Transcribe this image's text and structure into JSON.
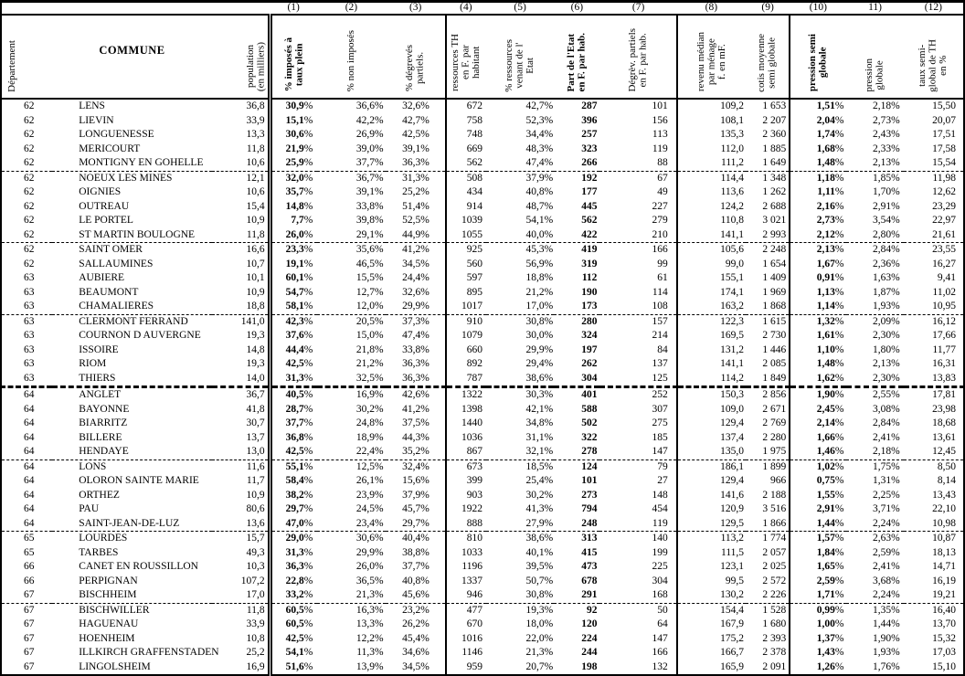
{
  "table": {
    "number_row": [
      "",
      "",
      "",
      "(1)",
      "(2)",
      "(3)",
      "(4)",
      "(5)",
      "(6)",
      "(7)",
      "(8)",
      "(9)",
      "(10)",
      "11)",
      "(12)"
    ],
    "headers": [
      {
        "key": "departement",
        "label": "Département"
      },
      {
        "key": "commune",
        "label": "COMMUNE"
      },
      {
        "key": "population",
        "label": "population\n(en milliers)"
      },
      {
        "key": "pct-imposes-taux-plein",
        "label": "% imposés à\ntaux plein"
      },
      {
        "key": "pct-non-imposes",
        "label": "% non imposés"
      },
      {
        "key": "pct-degreves-partiels",
        "label": "% dégrevés\npartiels."
      },
      {
        "key": "ressources-th",
        "label": "ressources TH\nen F. par\nhabitant"
      },
      {
        "key": "pct-ressources-etat",
        "label": "% ressources\nvenant de l'\nEtat"
      },
      {
        "key": "part-etat",
        "label": "Part de l'Etat\nen F. par hab."
      },
      {
        "key": "degrev-partiels",
        "label": "Dégrèv. partiels\nen F. par hab."
      },
      {
        "key": "revenu-median",
        "label": "revenu médian\npar ménage\nf. en mF."
      },
      {
        "key": "cotis-moyenne",
        "label": "cotis moyenne\nsemi globale"
      },
      {
        "key": "pression-semi-globale",
        "label": "pression semi\nglobale"
      },
      {
        "key": "pression-globale",
        "label": "pression\nglobale"
      },
      {
        "key": "taux-semi-global",
        "label": "taux semi-\nglobal de TH\nen %"
      }
    ],
    "rows": [
      [
        "62",
        "LENS",
        "36,8",
        "30,9%",
        "36,6%",
        "32,6%",
        "672",
        "42,7%",
        "287",
        "101",
        "109,2",
        "1 653",
        "1,51%",
        "2,18%",
        "15,50"
      ],
      [
        "62",
        "LIEVIN",
        "33,9",
        "15,1%",
        "42,2%",
        "42,7%",
        "758",
        "52,3%",
        "396",
        "156",
        "108,1",
        "2 207",
        "2,04%",
        "2,73%",
        "20,07"
      ],
      [
        "62",
        "LONGUENESSE",
        "13,3",
        "30,6%",
        "26,9%",
        "42,5%",
        "748",
        "34,4%",
        "257",
        "113",
        "135,3",
        "2 360",
        "1,74%",
        "2,43%",
        "17,51"
      ],
      [
        "62",
        "MERICOURT",
        "11,8",
        "21,9%",
        "39,0%",
        "39,1%",
        "669",
        "48,3%",
        "323",
        "119",
        "112,0",
        "1 885",
        "1,68%",
        "2,33%",
        "17,58"
      ],
      [
        "62",
        "MONTIGNY EN GOHELLE",
        "10,6",
        "25,9%",
        "37,7%",
        "36,3%",
        "562",
        "47,4%",
        "266",
        "88",
        "111,2",
        "1 649",
        "1,48%",
        "2,13%",
        "15,54"
      ],
      [
        "62",
        "NOEUX LES MINES",
        "12,1",
        "32,0%",
        "36,7%",
        "31,3%",
        "508",
        "37,9%",
        "192",
        "67",
        "114,4",
        "1 348",
        "1,18%",
        "1,85%",
        "11,98"
      ],
      [
        "62",
        "OIGNIES",
        "10,6",
        "35,7%",
        "39,1%",
        "25,2%",
        "434",
        "40,8%",
        "177",
        "49",
        "113,6",
        "1 262",
        "1,11%",
        "1,70%",
        "12,62"
      ],
      [
        "62",
        "OUTREAU",
        "15,4",
        "14,8%",
        "33,8%",
        "51,4%",
        "914",
        "48,7%",
        "445",
        "227",
        "124,2",
        "2 688",
        "2,16%",
        "2,91%",
        "23,29"
      ],
      [
        "62",
        "LE PORTEL",
        "10,9",
        "7,7%",
        "39,8%",
        "52,5%",
        "1039",
        "54,1%",
        "562",
        "279",
        "110,8",
        "3 021",
        "2,73%",
        "3,54%",
        "22,97"
      ],
      [
        "62",
        "ST MARTIN BOULOGNE",
        "11,8",
        "26,0%",
        "29,1%",
        "44,9%",
        "1055",
        "40,0%",
        "422",
        "210",
        "141,1",
        "2 993",
        "2,12%",
        "2,80%",
        "21,61"
      ],
      [
        "62",
        "SAINT OMER",
        "16,6",
        "23,3%",
        "35,6%",
        "41,2%",
        "925",
        "45,3%",
        "419",
        "166",
        "105,6",
        "2 248",
        "2,13%",
        "2,84%",
        "23,55"
      ],
      [
        "62",
        "SALLAUMINES",
        "10,7",
        "19,1%",
        "46,5%",
        "34,5%",
        "560",
        "56,9%",
        "319",
        "99",
        "99,0",
        "1 654",
        "1,67%",
        "2,36%",
        "16,27"
      ],
      [
        "63",
        "AUBIERE",
        "10,1",
        "60,1%",
        "15,5%",
        "24,4%",
        "597",
        "18,8%",
        "112",
        "61",
        "155,1",
        "1 409",
        "0,91%",
        "1,63%",
        "9,41"
      ],
      [
        "63",
        "BEAUMONT",
        "10,9",
        "54,7%",
        "12,7%",
        "32,6%",
        "895",
        "21,2%",
        "190",
        "114",
        "174,1",
        "1 969",
        "1,13%",
        "1,87%",
        "11,02"
      ],
      [
        "63",
        "CHAMALIERES",
        "18,8",
        "58,1%",
        "12,0%",
        "29,9%",
        "1017",
        "17,0%",
        "173",
        "108",
        "163,2",
        "1 868",
        "1,14%",
        "1,93%",
        "10,95"
      ],
      [
        "63",
        "CLERMONT FERRAND",
        "141,0",
        "42,3%",
        "20,5%",
        "37,3%",
        "910",
        "30,8%",
        "280",
        "157",
        "122,3",
        "1 615",
        "1,32%",
        "2,09%",
        "16,12"
      ],
      [
        "63",
        "COURNON D AUVERGNE",
        "19,3",
        "37,6%",
        "15,0%",
        "47,4%",
        "1079",
        "30,0%",
        "324",
        "214",
        "169,5",
        "2 730",
        "1,61%",
        "2,30%",
        "17,66"
      ],
      [
        "63",
        "ISSOIRE",
        "14,8",
        "44,4%",
        "21,8%",
        "33,8%",
        "660",
        "29,9%",
        "197",
        "84",
        "131,2",
        "1 446",
        "1,10%",
        "1,80%",
        "11,77"
      ],
      [
        "63",
        "RIOM",
        "19,3",
        "42,5%",
        "21,2%",
        "36,3%",
        "892",
        "29,4%",
        "262",
        "137",
        "141,1",
        "2 085",
        "1,48%",
        "2,13%",
        "16,31"
      ],
      [
        "63",
        "THIERS",
        "14,0",
        "31,3%",
        "32,5%",
        "36,3%",
        "787",
        "38,6%",
        "304",
        "125",
        "114,2",
        "1 849",
        "1,62%",
        "2,30%",
        "13,83"
      ],
      [
        "64",
        "ANGLET",
        "36,7",
        "40,5%",
        "16,9%",
        "42,6%",
        "1322",
        "30,3%",
        "401",
        "252",
        "150,3",
        "2 856",
        "1,90%",
        "2,55%",
        "17,81"
      ],
      [
        "64",
        "BAYONNE",
        "41,8",
        "28,7%",
        "30,2%",
        "41,2%",
        "1398",
        "42,1%",
        "588",
        "307",
        "109,0",
        "2 671",
        "2,45%",
        "3,08%",
        "23,98"
      ],
      [
        "64",
        "BIARRITZ",
        "30,7",
        "37,7%",
        "24,8%",
        "37,5%",
        "1440",
        "34,8%",
        "502",
        "275",
        "129,4",
        "2 769",
        "2,14%",
        "2,84%",
        "18,68"
      ],
      [
        "64",
        "BILLERE",
        "13,7",
        "36,8%",
        "18,9%",
        "44,3%",
        "1036",
        "31,1%",
        "322",
        "185",
        "137,4",
        "2 280",
        "1,66%",
        "2,41%",
        "13,61"
      ],
      [
        "64",
        "HENDAYE",
        "13,0",
        "42,5%",
        "22,4%",
        "35,2%",
        "867",
        "32,1%",
        "278",
        "147",
        "135,0",
        "1 975",
        "1,46%",
        "2,18%",
        "12,45"
      ],
      [
        "64",
        "LONS",
        "11,6",
        "55,1%",
        "12,5%",
        "32,4%",
        "673",
        "18,5%",
        "124",
        "79",
        "186,1",
        "1 899",
        "1,02%",
        "1,75%",
        "8,50"
      ],
      [
        "64",
        "OLORON SAINTE MARIE",
        "11,7",
        "58,4%",
        "26,1%",
        "15,6%",
        "399",
        "25,4%",
        "101",
        "27",
        "129,4",
        "966",
        "0,75%",
        "1,31%",
        "8,14"
      ],
      [
        "64",
        "ORTHEZ",
        "10,9",
        "38,2%",
        "23,9%",
        "37,9%",
        "903",
        "30,2%",
        "273",
        "148",
        "141,6",
        "2 188",
        "1,55%",
        "2,25%",
        "13,43"
      ],
      [
        "64",
        "PAU",
        "80,6",
        "29,7%",
        "24,5%",
        "45,7%",
        "1922",
        "41,3%",
        "794",
        "454",
        "120,9",
        "3 516",
        "2,91%",
        "3,71%",
        "22,10"
      ],
      [
        "64",
        "SAINT-JEAN-DE-LUZ",
        "13,6",
        "47,0%",
        "23,4%",
        "29,7%",
        "888",
        "27,9%",
        "248",
        "119",
        "129,5",
        "1 866",
        "1,44%",
        "2,24%",
        "10,98"
      ],
      [
        "65",
        "LOURDES",
        "15,7",
        "29,0%",
        "30,6%",
        "40,4%",
        "810",
        "38,6%",
        "313",
        "140",
        "113,2",
        "1 774",
        "1,57%",
        "2,63%",
        "10,87"
      ],
      [
        "65",
        "TARBES",
        "49,3",
        "31,3%",
        "29,9%",
        "38,8%",
        "1033",
        "40,1%",
        "415",
        "199",
        "111,5",
        "2 057",
        "1,84%",
        "2,59%",
        "18,13"
      ],
      [
        "66",
        "CANET EN ROUSSILLON",
        "10,3",
        "36,3%",
        "26,0%",
        "37,7%",
        "1196",
        "39,5%",
        "473",
        "225",
        "123,1",
        "2 025",
        "1,65%",
        "2,41%",
        "14,71"
      ],
      [
        "66",
        "PERPIGNAN",
        "107,2",
        "22,8%",
        "36,5%",
        "40,8%",
        "1337",
        "50,7%",
        "678",
        "304",
        "99,5",
        "2 572",
        "2,59%",
        "3,68%",
        "16,19"
      ],
      [
        "67",
        "BISCHHEIM",
        "17,0",
        "33,2%",
        "21,3%",
        "45,6%",
        "946",
        "30,8%",
        "291",
        "168",
        "130,2",
        "2 226",
        "1,71%",
        "2,24%",
        "19,21"
      ],
      [
        "67",
        "BISCHWILLER",
        "11,8",
        "60,5%",
        "16,3%",
        "23,2%",
        "477",
        "19,3%",
        "92",
        "50",
        "154,4",
        "1 528",
        "0,99%",
        "1,35%",
        "16,40"
      ],
      [
        "67",
        "HAGUENAU",
        "33,9",
        "60,5%",
        "13,3%",
        "26,2%",
        "670",
        "18,0%",
        "120",
        "64",
        "167,9",
        "1 680",
        "1,00%",
        "1,44%",
        "13,70"
      ],
      [
        "67",
        "HOENHEIM",
        "10,8",
        "42,5%",
        "12,2%",
        "45,4%",
        "1016",
        "22,0%",
        "224",
        "147",
        "175,2",
        "2 393",
        "1,37%",
        "1,90%",
        "15,32"
      ],
      [
        "67",
        "ILLKIRCH GRAFFENSTADEN",
        "25,2",
        "54,1%",
        "11,3%",
        "34,6%",
        "1146",
        "21,3%",
        "244",
        "166",
        "166,7",
        "2 378",
        "1,43%",
        "1,93%",
        "17,03"
      ],
      [
        "67",
        "LINGOLSHEIM",
        "16,9",
        "51,6%",
        "13,9%",
        "34,5%",
        "959",
        "20,7%",
        "198",
        "132",
        "165,9",
        "2 091",
        "1,26%",
        "1,76%",
        "15,10"
      ]
    ],
    "dashed_separator_after_row_indexes": [
      4,
      9,
      14,
      24,
      29,
      34
    ],
    "thick_dashed_separator_after_row_indexes": [
      19
    ],
    "bold_column_indexes": [
      3,
      8,
      12
    ],
    "colors": {
      "ink": "#000000",
      "paper": "#ffffff"
    }
  }
}
